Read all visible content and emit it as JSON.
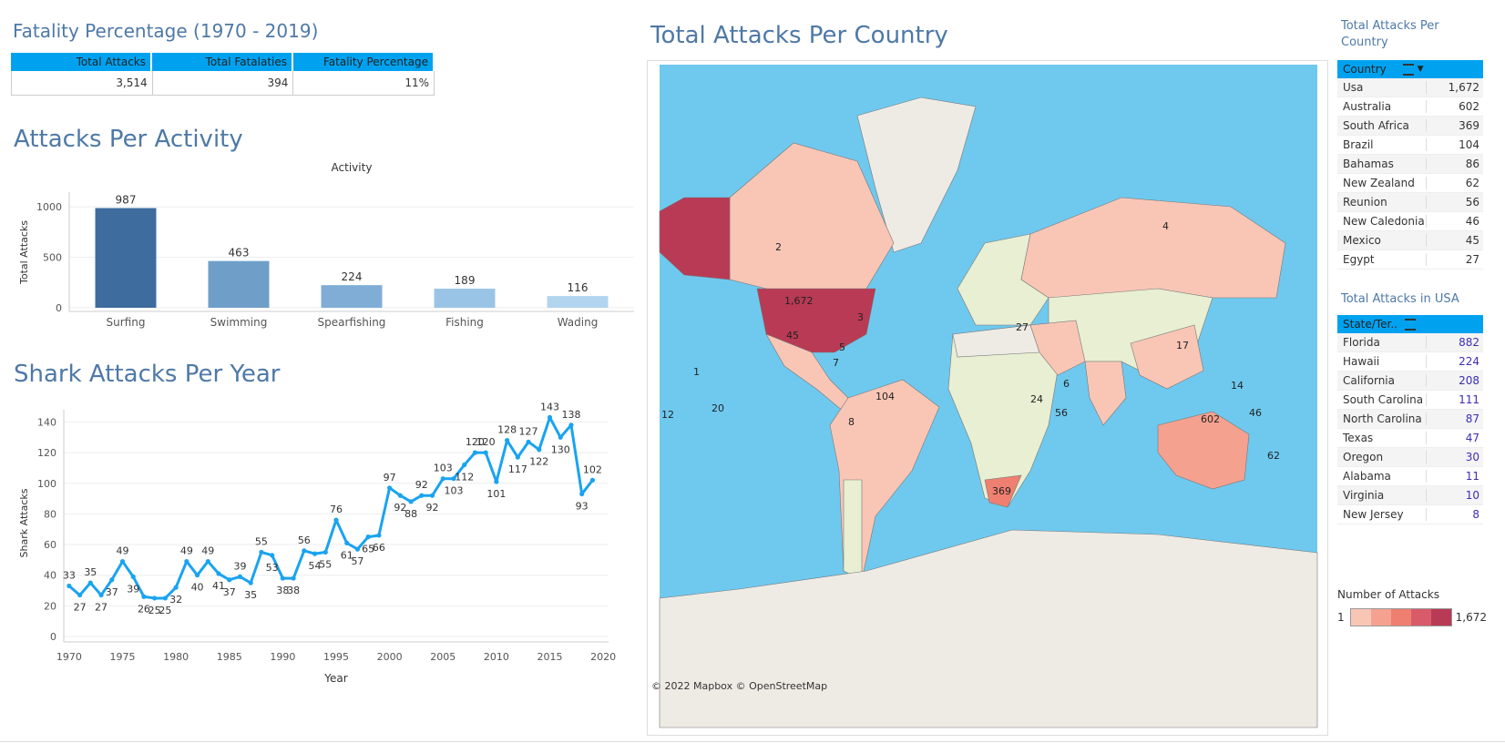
{
  "fatality": {
    "title": "Fatality Percentage (1970 - 2019)",
    "headers": [
      "Total Attacks",
      "Total Fatalaties",
      "Fatality Percentage"
    ],
    "values": [
      "3,514",
      "394",
      "11%"
    ]
  },
  "activity": {
    "title": "Attacks Per Activity",
    "header": "Activity"
  },
  "year_section": {
    "title": "Shark Attacks Per Year"
  },
  "map": {
    "title": "Total Attacks Per Country",
    "credit": "© 2022 Mapbox  © OpenStreetMap",
    "labels": [
      "1,672",
      "602",
      "369",
      "104",
      "45",
      "56",
      "62",
      "46",
      "27",
      "20",
      "4",
      "2",
      "3",
      "1",
      "5",
      "7",
      "8",
      "12",
      "14",
      "17",
      "24",
      "6"
    ]
  },
  "country_table": {
    "title": "Total Attacks Per Country",
    "header": "Country",
    "rows": [
      {
        "name": "Usa",
        "value": "1,672"
      },
      {
        "name": "Australia",
        "value": "602"
      },
      {
        "name": "South Africa",
        "value": "369"
      },
      {
        "name": "Brazil",
        "value": "104"
      },
      {
        "name": "Bahamas",
        "value": "86"
      },
      {
        "name": "New Zealand",
        "value": "62"
      },
      {
        "name": "Reunion",
        "value": "56"
      },
      {
        "name": "New Caledonia",
        "value": "46"
      },
      {
        "name": "Mexico",
        "value": "45"
      },
      {
        "name": "Egypt",
        "value": "27"
      }
    ]
  },
  "usa_table": {
    "title": "Total Attacks in USA",
    "header": "State/Ter..",
    "rows": [
      {
        "name": "Florida",
        "value": "882"
      },
      {
        "name": "Hawaii",
        "value": "224"
      },
      {
        "name": "California",
        "value": "208"
      },
      {
        "name": "South Carolina",
        "value": "111"
      },
      {
        "name": "North Carolina",
        "value": "87"
      },
      {
        "name": "Texas",
        "value": "47"
      },
      {
        "name": "Oregon",
        "value": "30"
      },
      {
        "name": "Alabama",
        "value": "11"
      },
      {
        "name": "Virginia",
        "value": "10"
      },
      {
        "name": "New Jersey",
        "value": "8"
      }
    ]
  },
  "legend": {
    "title": "Number of Attacks",
    "min": "1",
    "max": "1,672",
    "colors": [
      "#f9c6b6",
      "#f5a190",
      "#ef7f70",
      "#d95b6a",
      "#b93a55"
    ]
  },
  "chart_data": [
    {
      "type": "bar",
      "title": "Attacks Per Activity",
      "xlabel": "Activity",
      "ylabel": "Total Attacks",
      "categories": [
        "Surfing",
        "Swimming",
        "Spearfishing",
        "Fishing",
        "Wading"
      ],
      "values": [
        987,
        463,
        224,
        189,
        116
      ],
      "colors": [
        "#3e6c9f",
        "#6f9fc8",
        "#7fadd6",
        "#99c4e6",
        "#b1d5ef"
      ],
      "yticks": [
        0,
        500,
        1000
      ],
      "ylim": [
        0,
        1100
      ]
    },
    {
      "type": "line",
      "title": "Shark Attacks Per Year",
      "xlabel": "Year",
      "ylabel": "Shark Attacks",
      "x": [
        1970,
        1971,
        1972,
        1973,
        1974,
        1975,
        1976,
        1977,
        1978,
        1979,
        1980,
        1981,
        1982,
        1983,
        1984,
        1985,
        1986,
        1987,
        1988,
        1989,
        1990,
        1991,
        1992,
        1993,
        1994,
        1995,
        1996,
        1997,
        1998,
        1999,
        2000,
        2001,
        2002,
        2003,
        2004,
        2005,
        2006,
        2007,
        2008,
        2009,
        2010,
        2011,
        2012,
        2013,
        2014,
        2015,
        2016,
        2017,
        2018,
        2019
      ],
      "y": [
        33,
        27,
        35,
        27,
        37,
        49,
        39,
        26,
        25,
        25,
        32,
        49,
        40,
        49,
        41,
        37,
        39,
        35,
        55,
        53,
        38,
        38,
        56,
        54,
        55,
        76,
        61,
        57,
        65,
        66,
        97,
        92,
        88,
        92,
        92,
        103,
        103,
        112,
        120,
        120,
        101,
        128,
        117,
        127,
        122,
        143,
        130,
        138,
        93,
        102
      ],
      "xticks": [
        1970,
        1975,
        1980,
        1985,
        1990,
        1995,
        2000,
        2005,
        2010,
        2015,
        2020
      ],
      "yticks": [
        0,
        20,
        40,
        60,
        80,
        100,
        120,
        140
      ],
      "ylim": [
        0,
        148
      ],
      "xlim": [
        1969.5,
        2020.5
      ],
      "color": "#1aa3f0"
    }
  ]
}
